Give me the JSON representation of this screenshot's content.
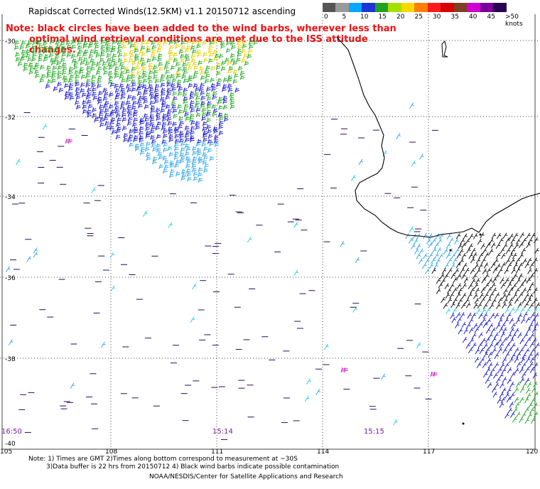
{
  "title": "Rapidscat Corrected Winds(12.5KM) v1.1 20150712 ascending",
  "note_line1": "Note: black circles have been added to the wind barbs, wherever less than",
  "note_line2": "optimal wind retrieval conditions are met due to the ISS attitude changes.",
  "speed_scale": {
    "labels": [
      "0",
      "5",
      "10",
      "15",
      "20",
      "25",
      "30",
      "35",
      "40",
      "45",
      ">50 knots"
    ],
    "colors": [
      "#555555",
      "#999999",
      "#00a8ff",
      "#1a36d6",
      "#1fa31f",
      "#a6e000",
      "#ffd700",
      "#ff7f00",
      "#ff1a1a",
      "#d90000",
      "#7f3f20",
      "#d000d0",
      "#7a009a",
      "#2a0050"
    ]
  },
  "latitude_labels": [
    "-30",
    "-32",
    "-34",
    "-36",
    "-38",
    "-40"
  ],
  "longitude_labels": [
    "105",
    "108",
    "111",
    "114",
    "117",
    "120"
  ],
  "time_labels": [
    "16:50",
    "15:14",
    "15:15"
  ],
  "footer_line1": "Note: 1) Times are GMT 2)Times along bottom correspond to measurement at ~30S",
  "footer_line2": "3)Data buffer is 22 hrs from 20150712 4) Black wind barbs indicate possible contamination",
  "footer_line3": "NOAA/NESDIS/Center for Satellite Applications and Research",
  "barb_colors": {
    "dark_blue": "#1a1ad0",
    "light_blue": "#33a8e8",
    "cyan": "#22d0e8",
    "green": "#22aa22",
    "yellow": "#e8d000",
    "purple": "#2a0a5a",
    "magenta": "#cc22cc",
    "black": "#111111"
  },
  "coastline_color": "#000000"
}
